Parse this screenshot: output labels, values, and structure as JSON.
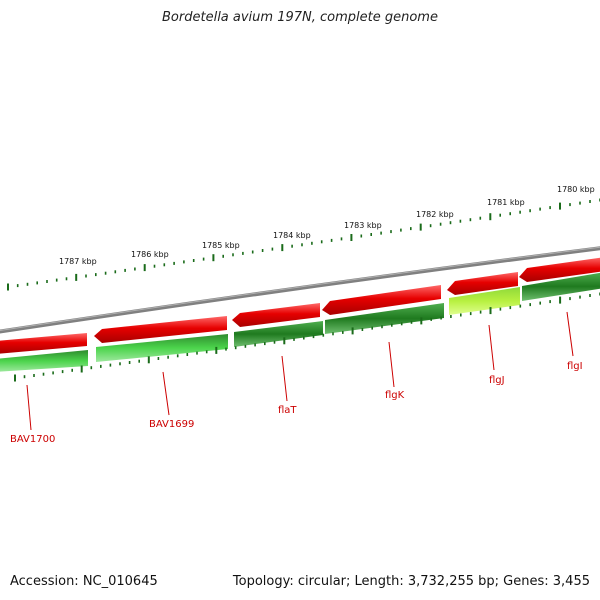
{
  "title": "Bordetella avium 197N, complete genome",
  "footer": {
    "accession": "Accession: NC_010645",
    "topology": "Topology: circular; Length: 3,732,255 bp; Genes: 3,455"
  },
  "colors": {
    "forward_gene": "#e60000",
    "reverse_gene": "#1f7a1f",
    "reverse_gene_light": "#4cd44c",
    "highlight_gene": "#b8f040",
    "backbone": "#808080",
    "tick": "#1a6b1a",
    "label": "#cc0000"
  },
  "kbp_labels": [
    "1787 kbp",
    "1786 kbp",
    "1785 kbp",
    "1784 kbp",
    "1783 kbp",
    "1782 kbp",
    "1781 kbp",
    "1780 kbp"
  ],
  "genes": [
    {
      "label": "BAV1700"
    },
    {
      "label": "BAV1699"
    },
    {
      "label": "flaT"
    },
    {
      "label": "flgK"
    },
    {
      "label": "flgJ"
    },
    {
      "label": "flgI"
    }
  ]
}
